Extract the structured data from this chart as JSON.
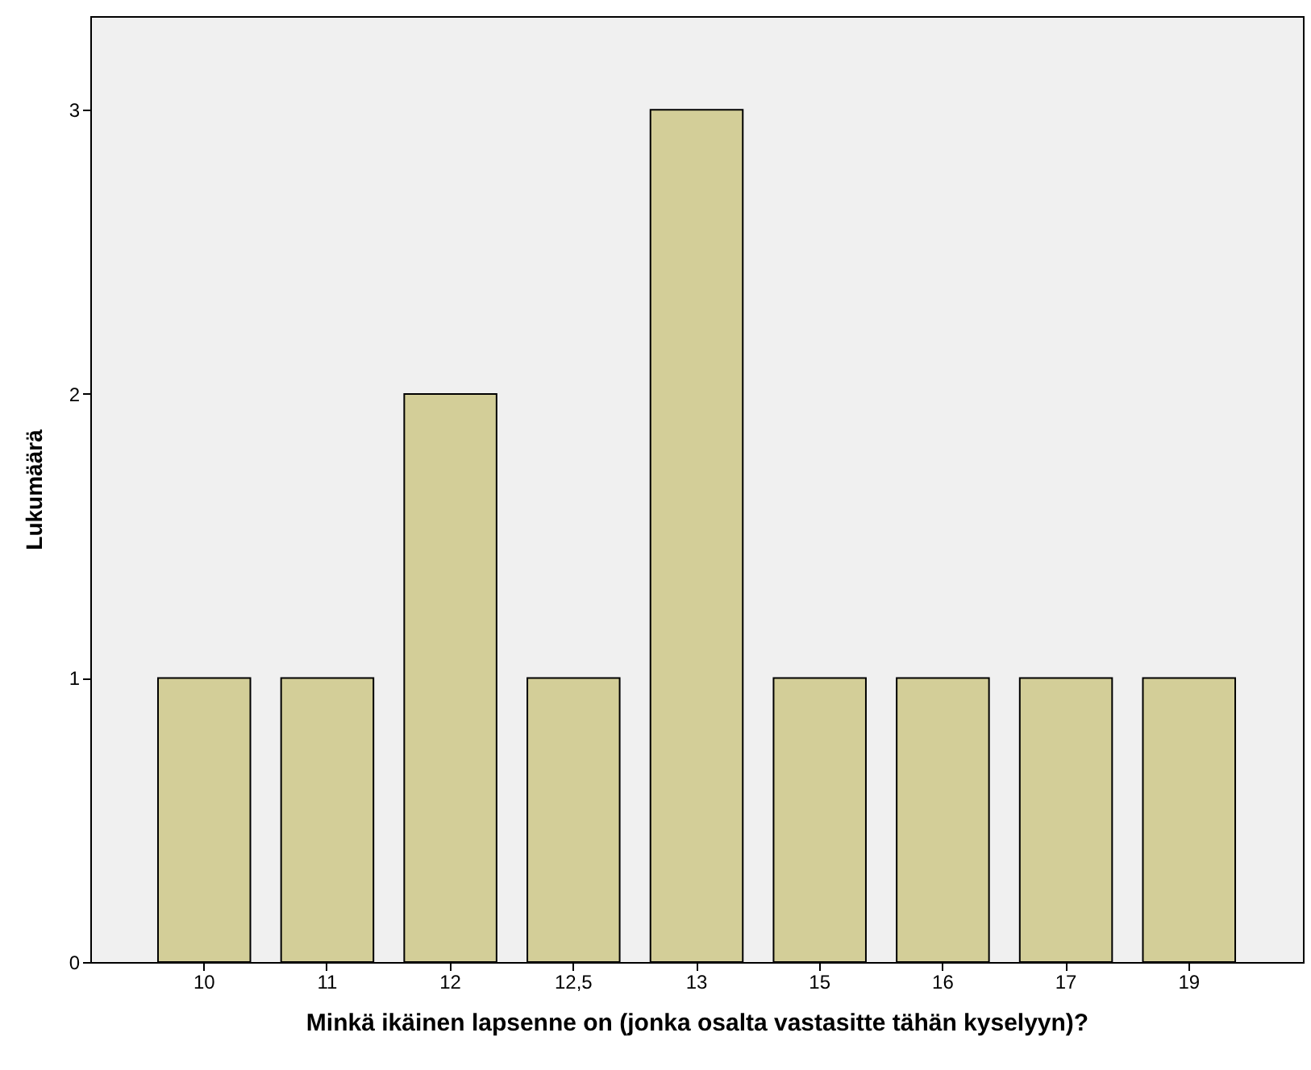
{
  "chart_data": {
    "type": "bar",
    "xlabel": "Minkä ikäinen lapsenne on (jonka osalta vastasitte tähän kyselyyn)?",
    "ylabel": "Lukumäärä",
    "categories": [
      "10",
      "11",
      "12",
      "12,5",
      "13",
      "15",
      "16",
      "17",
      "19"
    ],
    "values": [
      1,
      1,
      2,
      1,
      3,
      1,
      1,
      1,
      1
    ],
    "color": "#d3ce98",
    "ylim": [
      0,
      3.33
    ],
    "yticks": [
      0,
      1,
      2,
      3
    ],
    "grid": false
  }
}
